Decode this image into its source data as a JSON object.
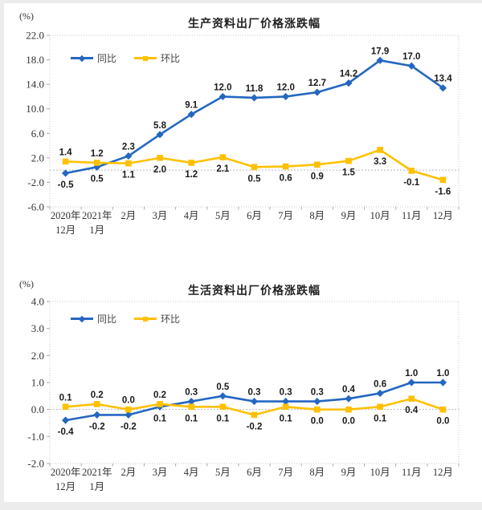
{
  "page": {
    "unit_label": "(%)"
  },
  "legend": {
    "yoy_label": "同比",
    "mom_label": "环比"
  },
  "colors": {
    "yoy_blue": "#2467C0",
    "mom_gold": "#FFC000",
    "plot_border": "#c6c6c6",
    "zero_line": "#b8b8b8",
    "axis_text": "#333333",
    "label_text": "#1a1a1a"
  },
  "chart_data": [
    {
      "type": "line",
      "title": "生产资料出厂价格涨跌幅",
      "unit_label": "(%)",
      "categories": [
        "2020年\n12月",
        "2021年\n1月",
        "2月",
        "3月",
        "4月",
        "5月",
        "6月",
        "7月",
        "8月",
        "9月",
        "10月",
        "11月",
        "12月"
      ],
      "series": [
        {
          "name": "同比",
          "color": "#2467C0",
          "marker": "diamond",
          "values": [
            -0.5,
            0.5,
            2.3,
            5.8,
            9.1,
            12.0,
            11.8,
            12.0,
            12.7,
            14.2,
            17.9,
            17.0,
            13.4
          ]
        },
        {
          "name": "环比",
          "color": "#FFC000",
          "marker": "square",
          "values": [
            1.4,
            1.2,
            1.1,
            2.0,
            1.2,
            2.1,
            0.5,
            0.6,
            0.9,
            1.5,
            3.3,
            -0.1,
            -1.6
          ]
        }
      ],
      "ylim": [
        -6.0,
        22.0
      ],
      "yticks": [
        22.0,
        18.0,
        14.0,
        10.0,
        6.0,
        2.0,
        -2.0,
        -6.0
      ],
      "grid": false,
      "zero_line": true,
      "legend_position": "top-left",
      "label_decimals": 1
    },
    {
      "type": "line",
      "title": "生活资料出厂价格涨跌幅",
      "unit_label": "(%)",
      "categories": [
        "2020年\n12月",
        "2021年\n1月",
        "2月",
        "3月",
        "4月",
        "5月",
        "6月",
        "7月",
        "8月",
        "9月",
        "10月",
        "11月",
        "12月"
      ],
      "series": [
        {
          "name": "同比",
          "color": "#2467C0",
          "marker": "diamond",
          "values": [
            -0.4,
            -0.2,
            -0.2,
            0.1,
            0.3,
            0.5,
            0.3,
            0.3,
            0.3,
            0.4,
            0.6,
            1.0,
            1.0
          ]
        },
        {
          "name": "环比",
          "color": "#FFC000",
          "marker": "square",
          "values": [
            0.1,
            0.2,
            0.0,
            0.2,
            0.1,
            0.1,
            -0.2,
            0.1,
            0.0,
            0.0,
            0.1,
            0.4,
            0.0
          ]
        }
      ],
      "ylim": [
        -2.0,
        4.0
      ],
      "yticks": [
        4.0,
        3.0,
        2.0,
        1.0,
        0.0,
        -1.0,
        -2.0
      ],
      "grid": false,
      "zero_line": true,
      "legend_position": "top-left",
      "label_decimals": 1
    }
  ]
}
